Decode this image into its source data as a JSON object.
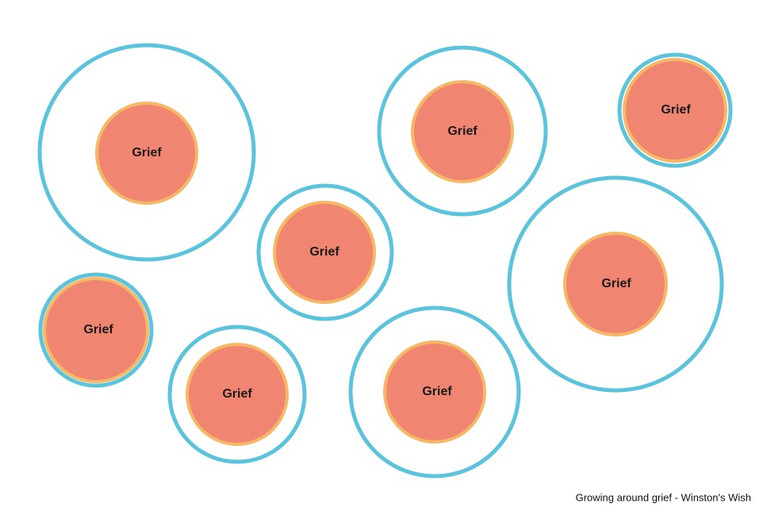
{
  "nodes": [
    {
      "label": "Grief"
    },
    {
      "label": "Grief"
    },
    {
      "label": "Grief"
    },
    {
      "label": "Grief"
    },
    {
      "label": "Grief"
    },
    {
      "label": "Grief"
    },
    {
      "label": "Grief"
    },
    {
      "label": "Grief"
    }
  ],
  "caption": "Growing around grief - Winston's Wish"
}
